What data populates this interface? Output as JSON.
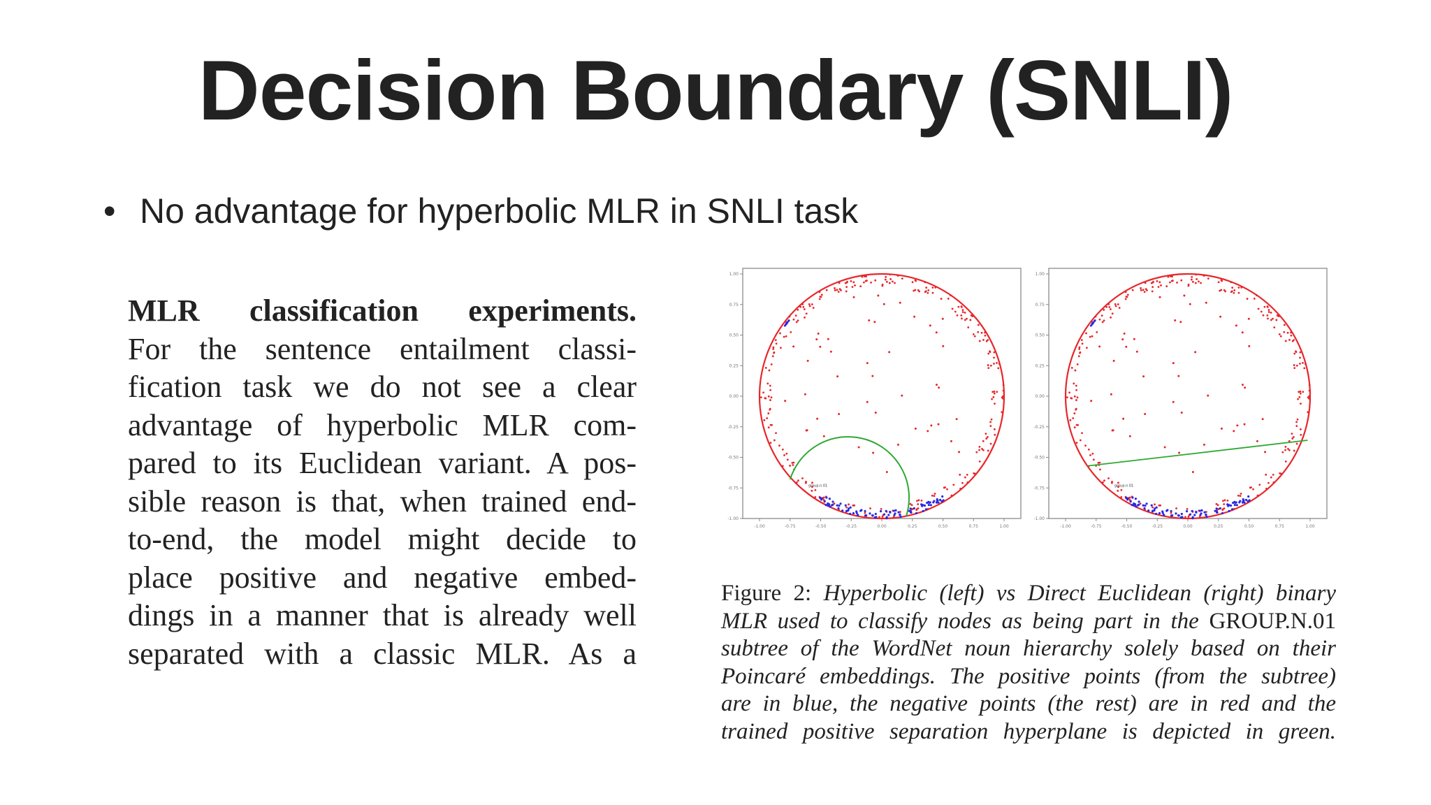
{
  "slide": {
    "title": "Decision Boundary (SNLI)",
    "bullet_marker": "•",
    "bullet": "No advantage for hyperbolic MLR in SNLI task"
  },
  "excerpt": {
    "lines": [
      "MLR classification experiments.",
      "For the sentence entailment classi-",
      "fication task we do not see a clear",
      "advantage of hyperbolic MLR com-",
      "pared to its Euclidean variant. A pos-",
      "sible reason is that, when trained end-",
      "to-end, the model might decide to",
      "place positive and negative embed-",
      "dings in a manner that is already well",
      "separated with a classic MLR. As a"
    ]
  },
  "figure": {
    "caption_prefix": "Figure 2: ",
    "caption_lines": [
      "Hyperbolic (left) vs Direct Euclidean (right) binary",
      "MLR used to classify nodes as being part in the ",
      "subtree of the WordNet noun hierarchy solely based on their",
      "Poincaré embeddings. The positive points (from the subtree)",
      "are in blue, the negative points (the rest) are in red and the",
      "trained positive separation hyperplane is depicted in green."
    ],
    "caption_term": "GROUP.N.01",
    "plots": [
      {
        "name": "Hyperbolic",
        "boundary": "hyperbolic-arc"
      },
      {
        "name": "Direct Euclidean",
        "boundary": "straight-line"
      }
    ],
    "axis_ticks": [
      "-1.00",
      "-0.75",
      "-0.50",
      "-0.25",
      "0.00",
      "0.25",
      "0.50",
      "0.75",
      "1.00"
    ],
    "point_label": "group.n.01",
    "colors": {
      "negative": "#e8262a",
      "positive": "#2a2ae0",
      "boundary": "#2ea832",
      "disk": "#e8262a"
    }
  }
}
